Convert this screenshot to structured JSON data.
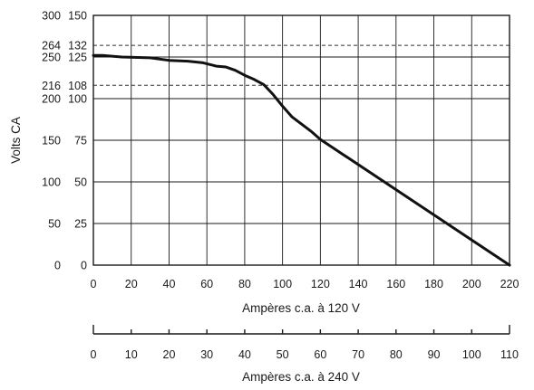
{
  "chart_data": {
    "type": "line",
    "ylabel": "Volts CA",
    "xlabel": "Ampères c.a. à 120 V",
    "xlabel_secondary": "Ampères c.a. à 240 V",
    "xlim": [
      0,
      220
    ],
    "ylim": [
      0,
      300
    ],
    "grid": true,
    "x_ticks": [
      0,
      20,
      40,
      60,
      80,
      100,
      120,
      140,
      160,
      180,
      200,
      220
    ],
    "x_ticks_secondary": [
      0,
      10,
      20,
      30,
      40,
      50,
      60,
      70,
      80,
      90,
      100,
      110
    ],
    "y_ticks_left": [
      {
        "v": 0,
        "label": "0"
      },
      {
        "v": 50,
        "label": "50"
      },
      {
        "v": 100,
        "label": "100"
      },
      {
        "v": 150,
        "label": "150"
      },
      {
        "v": 200,
        "label": "200"
      },
      {
        "v": 216,
        "label": "216"
      },
      {
        "v": 250,
        "label": "250"
      },
      {
        "v": 264,
        "label": "264"
      },
      {
        "v": 300,
        "label": "300"
      }
    ],
    "y_ticks_right": [
      {
        "v": 0,
        "label": "0"
      },
      {
        "v": 50,
        "label": "25"
      },
      {
        "v": 100,
        "label": "50"
      },
      {
        "v": 150,
        "label": "75"
      },
      {
        "v": 200,
        "label": "100"
      },
      {
        "v": 216,
        "label": "108"
      },
      {
        "v": 250,
        "label": "125"
      },
      {
        "v": 264,
        "label": "132"
      },
      {
        "v": 300,
        "label": "150"
      }
    ],
    "reference_lines": [
      264,
      216
    ],
    "series": [
      {
        "x": [
          0,
          5,
          15,
          30,
          40,
          50,
          58,
          65,
          70,
          75,
          80,
          85,
          90,
          95,
          100,
          105,
          115,
          120,
          220
        ],
        "y": [
          252,
          252,
          250,
          249,
          246,
          245,
          243,
          239,
          238,
          234,
          228,
          223,
          217,
          205,
          191,
          178,
          161,
          151,
          0
        ]
      }
    ]
  }
}
